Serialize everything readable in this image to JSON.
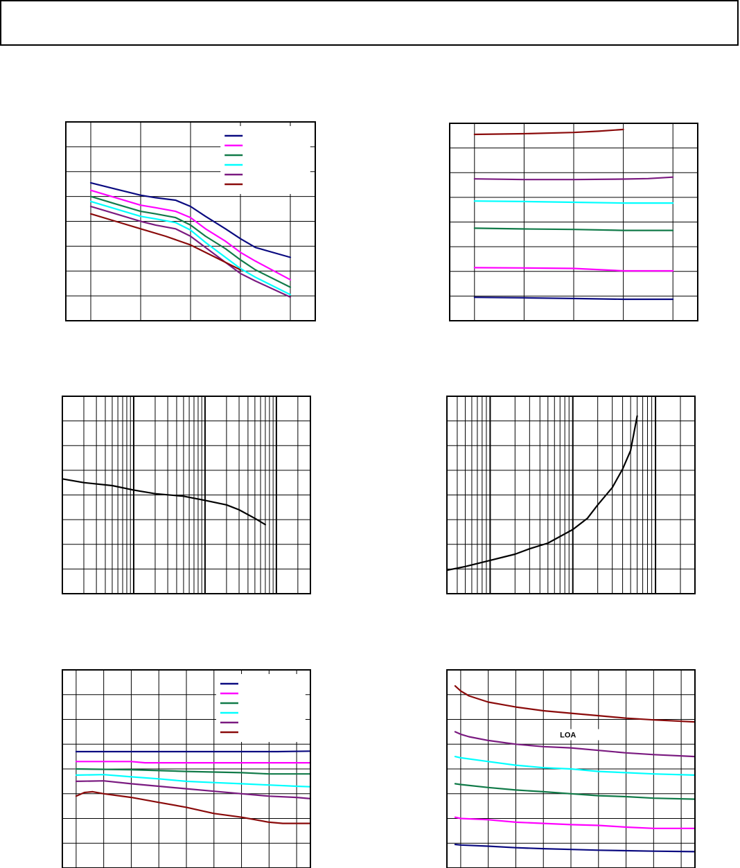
{
  "header": {
    "title": ""
  },
  "chart_data": [
    {
      "id": "c1",
      "type": "line",
      "title": "",
      "xlabel": "",
      "ylabel": "",
      "xlim": [
        -0.5,
        4.5
      ],
      "ylim": [
        0,
        8
      ],
      "xscale": "linear",
      "grid": true,
      "vgrid": [
        0,
        1,
        2,
        3,
        4
      ],
      "hgrid": [
        1,
        2,
        3,
        4,
        5,
        6,
        7
      ],
      "legend": "top-right",
      "series": [
        {
          "color": "#0a0a80",
          "x": [
            0,
            0.5,
            1,
            1.3,
            1.7,
            2,
            2.3,
            2.7,
            3,
            3.3,
            4
          ],
          "y": [
            5.55,
            5.3,
            5.05,
            4.95,
            4.85,
            4.6,
            4.2,
            3.7,
            3.3,
            2.95,
            2.55
          ]
        },
        {
          "color": "#ff00ff",
          "x": [
            0,
            0.5,
            1,
            1.3,
            1.7,
            2,
            2.3,
            2.7,
            3,
            3.3,
            4
          ],
          "y": [
            5.25,
            4.95,
            4.65,
            4.55,
            4.4,
            4.15,
            3.7,
            3.2,
            2.75,
            2.4,
            1.65
          ]
        },
        {
          "color": "#107a48",
          "x": [
            0,
            0.5,
            1,
            1.3,
            1.7,
            2,
            2.3,
            2.7,
            3,
            3.3,
            4
          ],
          "y": [
            5.0,
            4.7,
            4.4,
            4.3,
            4.15,
            3.85,
            3.4,
            2.9,
            2.45,
            2.05,
            1.35
          ]
        },
        {
          "color": "#00ffff",
          "x": [
            0,
            0.5,
            1,
            1.3,
            1.7,
            2,
            2.3,
            2.7,
            3,
            3.3,
            4
          ],
          "y": [
            4.8,
            4.5,
            4.2,
            4.1,
            3.95,
            3.65,
            3.15,
            2.55,
            2.1,
            1.75,
            1.05
          ]
        },
        {
          "color": "#7a1a80",
          "x": [
            0,
            0.5,
            1,
            1.3,
            1.7,
            2,
            2.3,
            2.7,
            3,
            3.3,
            4
          ],
          "y": [
            4.6,
            4.3,
            4.0,
            3.85,
            3.7,
            3.4,
            2.95,
            2.35,
            1.9,
            1.6,
            0.95
          ]
        },
        {
          "color": "#8a0a0a",
          "x": [
            0,
            0.5,
            1,
            1.5,
            2,
            2.5,
            3
          ],
          "y": [
            4.3,
            4.0,
            3.7,
            3.4,
            3.05,
            2.55,
            2.05
          ]
        }
      ]
    },
    {
      "id": "c2",
      "type": "line",
      "title": "",
      "xlabel": "",
      "ylabel": "",
      "xlim": [
        -0.5,
        4.5
      ],
      "ylim": [
        0,
        8
      ],
      "xscale": "linear",
      "grid": true,
      "vgrid": [
        0,
        1,
        2,
        3,
        4
      ],
      "hgrid": [
        1,
        2,
        3,
        4,
        5,
        6,
        7
      ],
      "series": [
        {
          "color": "#8a0a0a",
          "x": [
            0,
            1,
            2,
            2.5,
            3
          ],
          "y": [
            7.55,
            7.58,
            7.63,
            7.68,
            7.75
          ]
        },
        {
          "color": "#7a1a80",
          "x": [
            0,
            1,
            2,
            3,
            3.5,
            4
          ],
          "y": [
            5.75,
            5.72,
            5.72,
            5.74,
            5.76,
            5.82
          ]
        },
        {
          "color": "#00ffff",
          "x": [
            0,
            1,
            2,
            3,
            4
          ],
          "y": [
            4.85,
            4.83,
            4.8,
            4.77,
            4.77
          ]
        },
        {
          "color": "#107a48",
          "x": [
            0,
            1,
            2,
            3,
            4
          ],
          "y": [
            3.75,
            3.72,
            3.7,
            3.66,
            3.66
          ]
        },
        {
          "color": "#ff00ff",
          "x": [
            0,
            1,
            2,
            3,
            4
          ],
          "y": [
            2.15,
            2.14,
            2.12,
            2.02,
            2.02
          ]
        },
        {
          "color": "#0a0a80",
          "x": [
            0,
            1,
            2,
            3,
            4
          ],
          "y": [
            0.95,
            0.93,
            0.9,
            0.87,
            0.87
          ]
        }
      ]
    },
    {
      "id": "c3",
      "type": "line",
      "title": "",
      "xlabel": "",
      "ylabel": "",
      "xlim": [
        10,
        30000
      ],
      "ylim": [
        0,
        8
      ],
      "xscale": "log",
      "grid": true,
      "hgrid": [
        1,
        2,
        3,
        4,
        5,
        6,
        7
      ],
      "series": [
        {
          "color": "#000000",
          "x": [
            10,
            20,
            50,
            100,
            200,
            500,
            1000,
            2000,
            3000,
            5000,
            7000
          ],
          "y": [
            4.65,
            4.5,
            4.38,
            4.2,
            4.05,
            3.95,
            3.78,
            3.6,
            3.4,
            3.05,
            2.8
          ]
        }
      ]
    },
    {
      "id": "c4",
      "type": "line",
      "title": "",
      "xlabel": "",
      "ylabel": "",
      "xlim": [
        30,
        30000
      ],
      "ylim": [
        0,
        8
      ],
      "xscale": "log",
      "grid": true,
      "hgrid": [
        1,
        2,
        3,
        4,
        5,
        6,
        7
      ],
      "series": [
        {
          "color": "#000000",
          "x": [
            30,
            50,
            100,
            200,
            300,
            500,
            1000,
            1500,
            2000,
            3000,
            4000,
            5000,
            6000
          ],
          "y": [
            0.95,
            1.1,
            1.35,
            1.6,
            1.82,
            2.05,
            2.6,
            3.05,
            3.6,
            4.3,
            5.05,
            5.8,
            7.2
          ]
        }
      ]
    },
    {
      "id": "c5",
      "type": "line",
      "title": "",
      "xlabel": "",
      "ylabel": "",
      "xlim": [
        -0.5,
        8.5
      ],
      "ylim": [
        0,
        8
      ],
      "xscale": "linear",
      "grid": true,
      "vgrid": [
        0,
        1,
        2,
        3,
        4,
        5,
        6,
        7,
        8
      ],
      "hgrid": [
        1,
        2,
        3,
        4,
        5,
        6,
        7
      ],
      "legend": "top-right",
      "series": [
        {
          "color": "#0a0a80",
          "x": [
            0,
            2,
            4,
            6,
            7.3,
            8.5
          ],
          "y": [
            4.7,
            4.7,
            4.7,
            4.7,
            4.7,
            4.72
          ]
        },
        {
          "color": "#ff00ff",
          "x": [
            0,
            2,
            2.5,
            4,
            6,
            8.5
          ],
          "y": [
            4.3,
            4.3,
            4.25,
            4.25,
            4.25,
            4.25
          ]
        },
        {
          "color": "#107a48",
          "x": [
            0,
            2,
            4,
            6,
            7,
            8.5
          ],
          "y": [
            4.0,
            3.97,
            3.9,
            3.85,
            3.8,
            3.8
          ]
        },
        {
          "color": "#00ffff",
          "x": [
            0,
            1,
            2,
            3,
            4,
            5,
            6,
            7,
            8,
            8.5
          ],
          "y": [
            3.75,
            3.77,
            3.68,
            3.6,
            3.5,
            3.45,
            3.4,
            3.35,
            3.3,
            3.28
          ]
        },
        {
          "color": "#7a1a80",
          "x": [
            0,
            1,
            2,
            3,
            4,
            5,
            6,
            7,
            8,
            8.5
          ],
          "y": [
            3.5,
            3.52,
            3.4,
            3.3,
            3.2,
            3.1,
            3.0,
            2.9,
            2.85,
            2.8
          ]
        },
        {
          "color": "#8a0a0a",
          "x": [
            0,
            0.3,
            0.6,
            1,
            2,
            3,
            4,
            5,
            6,
            7,
            7.5,
            8.5
          ],
          "y": [
            2.9,
            3.05,
            3.08,
            3.0,
            2.85,
            2.65,
            2.45,
            2.2,
            2.05,
            1.85,
            1.8,
            1.8
          ]
        }
      ]
    },
    {
      "id": "c6",
      "type": "line",
      "title": "",
      "xlabel": "",
      "ylabel": "",
      "xlim": [
        -0.5,
        8.5
      ],
      "ylim": [
        0,
        8
      ],
      "xscale": "linear",
      "grid": true,
      "vgrid": [
        0,
        1,
        2,
        3,
        4,
        5,
        6,
        7,
        8
      ],
      "hgrid": [
        1,
        2,
        3,
        4,
        5,
        6,
        7
      ],
      "annotation": {
        "text": "LOA",
        "x": 3.5,
        "y": 5.3
      },
      "series": [
        {
          "color": "#8a0a0a",
          "x": [
            -0.2,
            0,
            0.3,
            1,
            2,
            3,
            4,
            5,
            6,
            7,
            8.5
          ],
          "y": [
            7.35,
            7.15,
            6.95,
            6.7,
            6.5,
            6.35,
            6.25,
            6.15,
            6.05,
            5.98,
            5.9
          ]
        },
        {
          "color": "#7a1a80",
          "x": [
            -0.2,
            0,
            0.3,
            1,
            2,
            3,
            4,
            5,
            6,
            7,
            8.5
          ],
          "y": [
            5.5,
            5.4,
            5.3,
            5.15,
            5.0,
            4.9,
            4.85,
            4.75,
            4.65,
            4.58,
            4.5
          ]
        },
        {
          "color": "#00ffff",
          "x": [
            -0.2,
            0,
            1,
            2,
            3,
            4,
            5,
            6,
            7,
            8.5
          ],
          "y": [
            4.5,
            4.45,
            4.3,
            4.15,
            4.05,
            4.0,
            3.9,
            3.85,
            3.8,
            3.75
          ]
        },
        {
          "color": "#107a48",
          "x": [
            -0.2,
            0,
            1,
            2,
            3,
            4,
            5,
            6,
            7,
            8.5
          ],
          "y": [
            3.4,
            3.37,
            3.25,
            3.15,
            3.08,
            3.0,
            2.92,
            2.88,
            2.82,
            2.78
          ]
        },
        {
          "color": "#ff00ff",
          "x": [
            -0.2,
            0,
            1,
            2,
            3,
            4,
            5,
            6,
            7,
            8.5
          ],
          "y": [
            2.05,
            2.0,
            1.95,
            1.85,
            1.8,
            1.75,
            1.72,
            1.65,
            1.6,
            1.6
          ]
        },
        {
          "color": "#0a0a80",
          "x": [
            -0.2,
            0,
            1,
            2,
            3,
            4,
            5,
            6,
            7,
            8.5
          ],
          "y": [
            0.95,
            0.93,
            0.88,
            0.82,
            0.78,
            0.75,
            0.72,
            0.7,
            0.68,
            0.66
          ]
        }
      ]
    }
  ]
}
